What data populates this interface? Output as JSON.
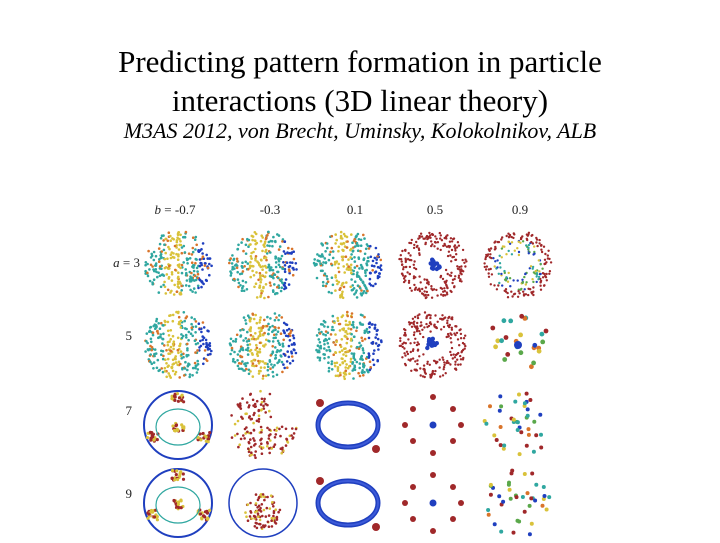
{
  "slide": {
    "title_line1": "Predicting pattern formation in particle",
    "title_line2": "interactions (3D linear theory)",
    "citation": "M3AS 2012, von Brecht, Uminsky, Kolokolnikov, ALB"
  },
  "figure": {
    "b_symbol": "b",
    "a_symbol": "a",
    "columns": [
      "-0.7",
      "-0.3",
      "0.1",
      "0.5",
      "0.9"
    ],
    "rows": [
      "3",
      "5",
      "7",
      "9"
    ],
    "patterns": [
      [
        "sphere-shell",
        "sphere-shell",
        "sphere-shell",
        "hollow-sphere-cluster",
        "ring-sphere-core"
      ],
      [
        "sphere-shell",
        "sphere-shell",
        "sphere-shell",
        "hollow-sphere-cluster",
        "scattered-clusters"
      ],
      [
        "tetra-ring",
        "partial-shell",
        "blue-ring",
        "dotted-clusters",
        "colorful-clusters"
      ],
      [
        "tetra-ring",
        "tetra-core",
        "blue-ring",
        "dotted-clusters",
        "colorful-clusters"
      ]
    ],
    "colors": {
      "blue": "#1f3fbf",
      "red": "#a0282a",
      "yellow": "#d9c23a",
      "teal": "#2fa7a0",
      "green": "#5aa84a",
      "orange": "#d9742a"
    }
  }
}
